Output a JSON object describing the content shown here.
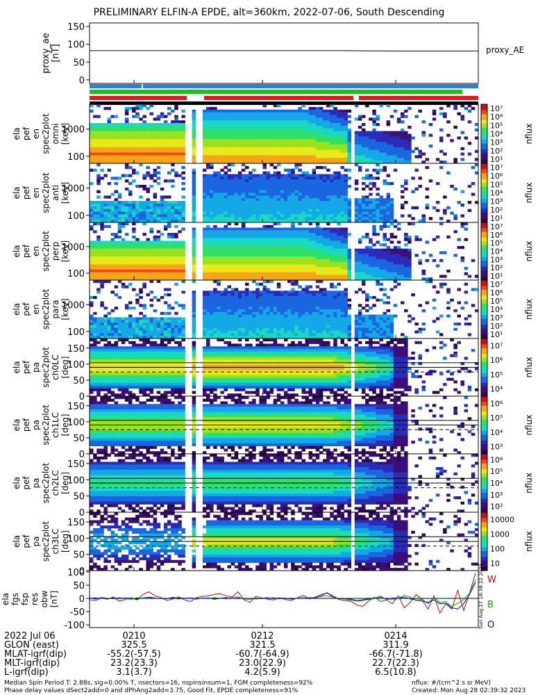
{
  "title": "PRELIMINARY ELFIN-A EPDE, alt=360km, 2022-07-06, South Descending",
  "colors": {
    "blue_bar": "#2a7de1",
    "red_bar": "#e11b1b",
    "green_bar": "#19c21b",
    "w_label": "#cc0000",
    "b_label": "#00aa00",
    "o_label": "#0000cc"
  },
  "side_stamp": "Sun Aug 27 18:38:22 2023",
  "chart_data": [
    {
      "type": "line",
      "name": "proxy_ae",
      "ylabel_lines": [
        "proxy_ae",
        "[nT]"
      ],
      "ylim": [
        -10,
        160
      ],
      "yticks": [
        0,
        50,
        100,
        150
      ],
      "right_label": "proxy_AE",
      "series": [
        {
          "name": "proxy_AE",
          "values": [
            82,
            82,
            82,
            82,
            82,
            82,
            82,
            81,
            81,
            81
          ]
        }
      ]
    },
    {
      "type": "heatmap",
      "ylabel_lines": [
        "ela",
        "pef",
        "en",
        "spec2plot",
        "omni",
        "[keV]"
      ],
      "yscale": "log",
      "yticks": [
        "100",
        "1000"
      ],
      "cbar_label": "nflux",
      "cbar_ticks": [
        "10¹",
        "10²",
        "10³",
        "10⁴",
        "10⁵",
        "10⁶",
        "10⁷"
      ]
    },
    {
      "type": "heatmap",
      "ylabel_lines": [
        "ela",
        "pef",
        "en",
        "spec2plot",
        "anti",
        "[keV]"
      ],
      "yscale": "log",
      "yticks": [
        "100",
        "1000"
      ],
      "cbar_label": "nflux",
      "cbar_ticks": [
        "10¹",
        "10²",
        "10³",
        "10⁴",
        "10⁵",
        "10⁶",
        "10⁷"
      ]
    },
    {
      "type": "heatmap",
      "ylabel_lines": [
        "ela",
        "pef",
        "en",
        "spec2plot",
        "perp",
        "[keV]"
      ],
      "yscale": "log",
      "yticks": [
        "100",
        "1000"
      ],
      "cbar_label": "nflux",
      "cbar_ticks": [
        "10¹",
        "10²",
        "10³",
        "10⁴",
        "10⁵",
        "10⁶",
        "10⁷"
      ]
    },
    {
      "type": "heatmap",
      "ylabel_lines": [
        "ela",
        "pef",
        "en",
        "spec2plot",
        "para",
        "[keV]"
      ],
      "yscale": "log",
      "yticks": [
        "100",
        "1000"
      ],
      "cbar_label": "nflux",
      "cbar_ticks": [
        "10¹",
        "10²",
        "10³",
        "10⁴",
        "10⁵",
        "10⁶",
        "10⁷"
      ]
    },
    {
      "type": "heatmap",
      "ylabel_lines": [
        "ela",
        "pef",
        "pa",
        "spec2plot",
        "ch0LC",
        "[deg]"
      ],
      "ylim": [
        0,
        180
      ],
      "yticks": [
        "0",
        "50",
        "100",
        "150"
      ],
      "cbar_label": "nflux",
      "cbar_ticks": [
        "10⁴",
        "10⁵",
        "10⁶",
        "10⁷"
      ]
    },
    {
      "type": "heatmap",
      "ylabel_lines": [
        "ela",
        "pef",
        "pa",
        "spec2plot",
        "ch1LC",
        "[deg]"
      ],
      "ylim": [
        0,
        180
      ],
      "yticks": [
        "0",
        "50",
        "100",
        "150"
      ],
      "cbar_label": "nflux",
      "cbar_ticks": [
        "10³",
        "10⁴",
        "10⁵",
        "10⁶"
      ]
    },
    {
      "type": "heatmap",
      "ylabel_lines": [
        "ela",
        "pef",
        "pa",
        "spec2plot",
        "ch2LC",
        "[deg]"
      ],
      "ylim": [
        0,
        180
      ],
      "yticks": [
        "0",
        "50",
        "100",
        "150"
      ],
      "cbar_label": "nflux",
      "cbar_ticks": [
        "10²",
        "10³",
        "10⁴",
        "10⁵",
        "10⁶"
      ]
    },
    {
      "type": "heatmap",
      "ylabel_lines": [
        "ela",
        "pef",
        "pa",
        "spec2plot",
        "ch3LC",
        "[deg]"
      ],
      "ylim": [
        0,
        180
      ],
      "yticks": [
        "0",
        "50",
        "100",
        "150"
      ],
      "cbar_label": "nflux",
      "cbar_ticks": [
        "10",
        "100",
        "1000",
        "10000"
      ]
    },
    {
      "type": "line",
      "name": "ela_fgs_fsp_res_obw",
      "ylabel_lines": [
        "ela",
        "fgs",
        "fsp",
        "res",
        "obw",
        "[nT]"
      ],
      "ylim": [
        -110,
        105
      ],
      "yticks": [
        -100,
        -50,
        0,
        50,
        100
      ],
      "legend": [
        "W",
        "B",
        "O"
      ],
      "series": [
        {
          "name": "W",
          "values": [
            -5,
            -8,
            2,
            -3,
            5,
            -10,
            -4,
            3,
            -6,
            15,
            25,
            10,
            4,
            -8,
            -2,
            6,
            -5,
            -12,
            3,
            8,
            10,
            15,
            18,
            10,
            5,
            25,
            -5,
            -15,
            8,
            2,
            -3,
            -6,
            2,
            -4,
            -8,
            3,
            12,
            -2,
            5,
            15,
            20,
            10,
            -4,
            -8,
            -10,
            -25,
            -30,
            -10,
            5,
            -12,
            -5,
            -20,
            10,
            -35,
            -15,
            15,
            -6,
            -40,
            10,
            -55,
            -20,
            -40,
            30,
            -45,
            20,
            95
          ]
        },
        {
          "name": "B",
          "values": [
            2,
            -3,
            4,
            1,
            -2,
            3,
            0,
            -4,
            3,
            -1,
            5,
            2,
            0,
            -2,
            4,
            3,
            1,
            0,
            -3,
            2,
            -1,
            3,
            1,
            -2,
            4,
            6,
            -2,
            -4,
            2,
            -1,
            0,
            3,
            -2,
            2,
            -3,
            1,
            0,
            4,
            2,
            8,
            10,
            5,
            0,
            -3,
            -6,
            -10,
            -8,
            -4,
            0,
            3,
            -2,
            -5,
            0,
            12,
            5,
            -8,
            -2,
            -20,
            5,
            -15,
            -12,
            -30,
            -18,
            -5,
            20,
            70
          ]
        },
        {
          "name": "O",
          "values": [
            1,
            2,
            0,
            -2,
            3,
            -1,
            2,
            0,
            -3,
            2,
            4,
            1,
            -1,
            0,
            3,
            -2,
            1,
            2,
            -1,
            0,
            2,
            -3,
            1,
            3,
            0,
            2,
            -1,
            1,
            -2,
            0,
            3,
            -1,
            2,
            0,
            -2,
            1,
            3,
            0,
            2,
            10,
            22,
            5,
            -2,
            0,
            -3,
            -8,
            -5,
            -2,
            0,
            8,
            -3,
            2,
            0,
            5,
            -2,
            -6,
            -10,
            -15,
            -5,
            -20,
            -18,
            -35,
            -40,
            -20,
            15,
            60
          ]
        }
      ]
    }
  ],
  "xaxis": {
    "rows": [
      {
        "label": "2022 Jul 06",
        "vals": [
          "0210",
          "0212",
          "0214"
        ]
      },
      {
        "label": "GLON (east)",
        "vals": [
          "325.5",
          "321.5",
          "311.9"
        ]
      },
      {
        "label": "MLAT-igrf(dip)",
        "vals": [
          "-55.2(-57.5)",
          "-60.7(-64.9)",
          "-66.7(-71.8)"
        ]
      },
      {
        "label": "MLT-igrf(dip)",
        "vals": [
          "23.2(23.3)",
          "23.0(22.9)",
          "22.7(22.3)"
        ]
      },
      {
        "label": "L-igrf(dip)",
        "vals": [
          "3.1(3.7)",
          "4.2(5.9)",
          "6.5(10.8)"
        ]
      }
    ]
  },
  "footer": {
    "left1": "Median Spin Period T: 2.88s, sig=0.00% T, nsectors=16, nspinsinsum=1, FGM completeness=92%",
    "left2": "Phase delay values dSect2add=0 and dPhAng2add=3.75, Good Fit, EPDE completeness=91%",
    "right1": "nflux: #/(cm^2 s sr MeV)",
    "right2": "Created: Mon Aug 28 02:39:32 2023"
  }
}
